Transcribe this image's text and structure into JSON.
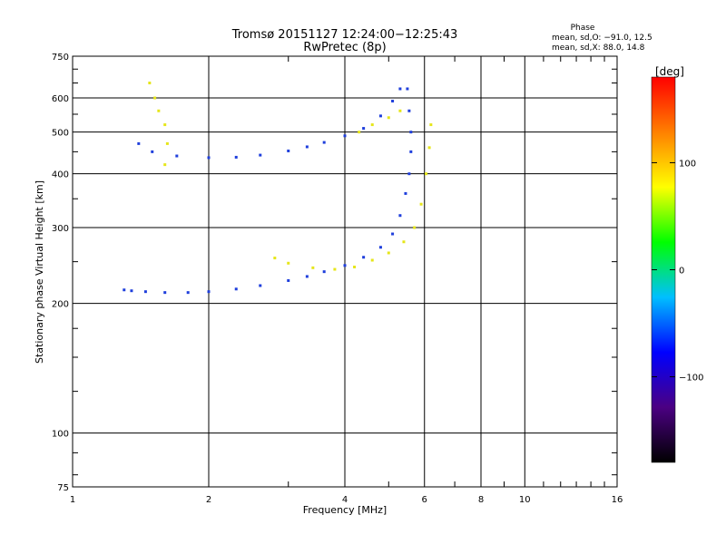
{
  "chart_data": {
    "type": "scatter",
    "title": "Tromsø 20151127 12:24:00−12:25:43",
    "subtitle": "RwPretec (8p)",
    "xlabel": "Frequency [MHz]",
    "ylabel": "Stationary phase Virtual Height [km]",
    "x_scale": "log",
    "y_scale": "log",
    "xlim": [
      1,
      16
    ],
    "ylim": [
      75,
      750
    ],
    "x_ticks": [
      1,
      2,
      4,
      6,
      8,
      10,
      16
    ],
    "y_ticks": [
      75,
      100,
      200,
      300,
      400,
      500,
      600,
      750
    ],
    "grid": true,
    "phase_note": {
      "title": "Phase",
      "line1": "mean, sd,O: −91.0, 12.5",
      "line2": "mean, sd,X:  88.0, 14.8"
    },
    "colorbar": {
      "label": "[deg]",
      "range": [
        -180,
        180
      ],
      "ticks": [
        100,
        0,
        -100
      ],
      "colors": [
        "#000000",
        "#4b0082",
        "#0000ff",
        "#00bfff",
        "#00ff00",
        "#ffff00",
        "#ff8000",
        "#ff0000"
      ]
    },
    "series": [
      {
        "color": "#1f3fdc",
        "points": [
          [
            1.3,
            215
          ],
          [
            1.35,
            214
          ],
          [
            1.45,
            213
          ],
          [
            1.6,
            212
          ],
          [
            1.8,
            212
          ],
          [
            2.0,
            213
          ],
          [
            2.3,
            216
          ],
          [
            2.6,
            220
          ],
          [
            3.0,
            226
          ],
          [
            3.3,
            231
          ],
          [
            3.6,
            237
          ],
          [
            4.0,
            245
          ],
          [
            4.4,
            256
          ],
          [
            4.8,
            270
          ],
          [
            5.1,
            290
          ],
          [
            5.3,
            320
          ],
          [
            5.45,
            360
          ],
          [
            5.55,
            400
          ],
          [
            5.6,
            450
          ],
          [
            5.6,
            500
          ],
          [
            5.55,
            560
          ],
          [
            5.5,
            630
          ]
        ]
      },
      {
        "color": "#1f3fdc",
        "points": [
          [
            1.4,
            470
          ],
          [
            1.5,
            450
          ],
          [
            1.7,
            440
          ],
          [
            2.0,
            436
          ],
          [
            2.3,
            437
          ],
          [
            2.6,
            442
          ],
          [
            3.0,
            452
          ],
          [
            3.3,
            462
          ],
          [
            3.6,
            473
          ],
          [
            4.0,
            490
          ],
          [
            4.4,
            510
          ],
          [
            4.8,
            545
          ],
          [
            5.1,
            590
          ],
          [
            5.3,
            630
          ]
        ]
      },
      {
        "color": "#e6e61a",
        "points": [
          [
            2.8,
            255
          ],
          [
            3.0,
            248
          ],
          [
            3.4,
            242
          ],
          [
            3.8,
            240
          ],
          [
            4.2,
            243
          ],
          [
            4.6,
            252
          ],
          [
            5.0,
            262
          ],
          [
            5.4,
            278
          ],
          [
            5.7,
            300
          ],
          [
            5.9,
            340
          ],
          [
            6.05,
            400
          ],
          [
            6.15,
            460
          ],
          [
            6.2,
            520
          ]
        ]
      },
      {
        "color": "#e6e61a",
        "points": [
          [
            4.3,
            500
          ],
          [
            4.6,
            520
          ],
          [
            5.0,
            540
          ],
          [
            5.3,
            560
          ]
        ]
      },
      {
        "color": "#e6e61a",
        "points": [
          [
            1.48,
            650
          ],
          [
            1.52,
            600
          ],
          [
            1.55,
            560
          ],
          [
            1.6,
            520
          ],
          [
            1.62,
            470
          ],
          [
            1.6,
            420
          ]
        ]
      }
    ]
  }
}
